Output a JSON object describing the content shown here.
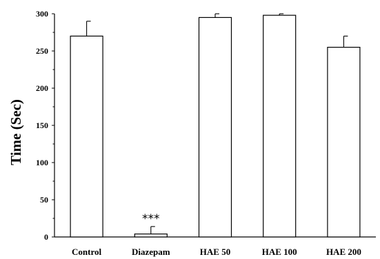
{
  "chart_data": {
    "type": "bar",
    "title": "",
    "xlabel": "",
    "ylabel": "Time (Sec)",
    "ylim": [
      0,
      300
    ],
    "yticks": [
      0,
      50,
      100,
      150,
      200,
      250,
      300
    ],
    "categories": [
      "Control",
      "Diazepam",
      "HAE 50",
      "HAE 100",
      "HAE 200"
    ],
    "values": [
      270,
      4,
      295,
      298,
      255
    ],
    "errors": [
      20,
      10,
      5,
      2,
      15
    ],
    "annotations": [
      {
        "category": "Diazepam",
        "text": "***"
      }
    ],
    "bar_fill": "#ffffff",
    "bar_stroke": "#000000",
    "grid": false,
    "legend": "none"
  }
}
